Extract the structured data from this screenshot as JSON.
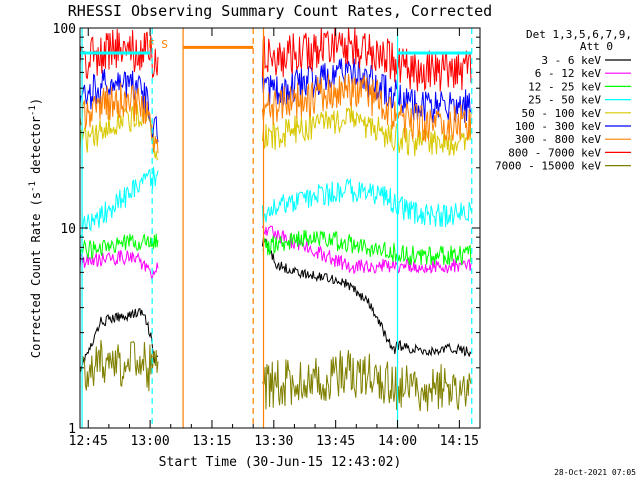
{
  "chart_data": {
    "type": "line",
    "title": "RHESSI Observing Summary Count Rates, Corrected",
    "xlabel": "Start Time (30-Jun-15 12:43:02)",
    "ylabel_main": "Corrected Count Rate (s",
    "ylabel_sup1": "-1",
    "ylabel_mid": " detector",
    "ylabel_sup2": "-1",
    "ylabel_end": ")",
    "x_unit": "minutes since 12:43:02",
    "xlim": [
      0,
      97
    ],
    "ylim": [
      1,
      100
    ],
    "yscale": "log",
    "x_ticks": [
      {
        "label": "12:45",
        "value": 2
      },
      {
        "label": "13:00",
        "value": 17
      },
      {
        "label": "13:15",
        "value": 32
      },
      {
        "label": "13:30",
        "value": 47
      },
      {
        "label": "13:45",
        "value": 62
      },
      {
        "label": "14:00",
        "value": 77
      },
      {
        "label": "14:15",
        "value": 92
      }
    ],
    "y_ticks": [
      {
        "label": "1",
        "value": 1
      },
      {
        "label": "10",
        "value": 10
      },
      {
        "label": "100",
        "value": 100
      }
    ],
    "legend_header1": "Det 1,3,5,6,7,9,",
    "legend_header2": "Att 0",
    "legend_placement": "right",
    "series": [
      {
        "name": "3 - 6 keV",
        "color": "#000000",
        "x": [
          0,
          3,
          5,
          10,
          15,
          17,
          18,
          45,
          46,
          48,
          50,
          55,
          60,
          65,
          70,
          72,
          76,
          77,
          80,
          85,
          90,
          95
        ],
        "y": [
          2.0,
          2.6,
          3.4,
          3.6,
          3.8,
          3.0,
          2.1,
          8.5,
          7.5,
          6.5,
          6.3,
          5.8,
          5.7,
          5.2,
          4.2,
          3.5,
          2.4,
          2.6,
          2.5,
          2.4,
          2.5,
          2.4
        ]
      },
      {
        "name": "6 - 12 keV",
        "color": "#ff00ff",
        "x": [
          0,
          5,
          10,
          14,
          17,
          45,
          50,
          55,
          60,
          65,
          70,
          75,
          77,
          80,
          85,
          90,
          95
        ],
        "y": [
          6.8,
          6.9,
          7.2,
          7.0,
          6.0,
          9.8,
          8.8,
          8.0,
          7.2,
          6.5,
          6.4,
          6.5,
          6.4,
          6.5,
          6.4,
          6.5,
          6.4
        ]
      },
      {
        "name": "12 - 25 keV",
        "color": "#00ff00",
        "x": [
          0,
          5,
          10,
          15,
          18,
          45,
          50,
          55,
          60,
          65,
          70,
          75,
          77,
          80,
          85,
          90,
          95
        ],
        "y": [
          7.6,
          8.0,
          8.3,
          8.6,
          8.4,
          8.0,
          8.6,
          8.8,
          8.7,
          8.4,
          8.0,
          7.7,
          7.4,
          7.3,
          7.3,
          7.3,
          7.3
        ]
      },
      {
        "name": "25 - 50 keV",
        "color": "#00ffff",
        "x": [
          0,
          3,
          6,
          9,
          12,
          15,
          17,
          18,
          45,
          50,
          55,
          60,
          65,
          70,
          75,
          77,
          80,
          85,
          90,
          95
        ],
        "y": [
          9.8,
          10.8,
          12.0,
          13.5,
          14.8,
          16.5,
          17.5,
          17.8,
          11.5,
          13.0,
          14.0,
          14.8,
          15.3,
          15.0,
          14.0,
          12.8,
          12.0,
          11.5,
          11.6,
          12.0
        ]
      },
      {
        "name": "50 - 100 keV",
        "color": "#d8c800",
        "x": [
          0,
          3,
          6,
          9,
          12,
          15,
          17,
          18,
          45,
          50,
          55,
          60,
          64,
          68,
          72,
          77,
          80,
          85,
          90,
          95
        ],
        "y": [
          27,
          29,
          31,
          33,
          35,
          37,
          34,
          26,
          28,
          30,
          32,
          34,
          36,
          34,
          31,
          28,
          27,
          27,
          27,
          27
        ]
      },
      {
        "name": "100 - 300 keV",
        "color": "#0000ff",
        "x": [
          0,
          3,
          6,
          9,
          12,
          15,
          17,
          18,
          45,
          50,
          55,
          60,
          64,
          68,
          72,
          77,
          80,
          85,
          90,
          95
        ],
        "y": [
          45,
          48,
          52,
          55,
          53,
          48,
          40,
          30,
          48,
          50,
          53,
          56,
          60,
          57,
          52,
          45,
          41,
          40,
          40,
          41
        ]
      },
      {
        "name": "300 - 800 keV",
        "color": "#ff8000",
        "x": [
          0,
          3,
          6,
          9,
          12,
          15,
          17,
          18,
          45,
          50,
          55,
          60,
          64,
          68,
          72,
          77,
          80,
          85,
          90,
          95
        ],
        "y": [
          38,
          40,
          42,
          44,
          43,
          40,
          33,
          25,
          40,
          42,
          44,
          47,
          50,
          48,
          44,
          37,
          34,
          33,
          33,
          34
        ]
      },
      {
        "name": "800 - 7000 keV",
        "color": "#ff0000",
        "x": [
          0,
          3,
          6,
          9,
          12,
          15,
          17,
          18,
          45,
          50,
          55,
          60,
          64,
          68,
          72,
          77,
          80,
          85,
          90,
          95
        ],
        "y": [
          68,
          72,
          76,
          79,
          78,
          76,
          74,
          72,
          72,
          73,
          76,
          80,
          84,
          80,
          74,
          66,
          62,
          61,
          62,
          63
        ]
      },
      {
        "name": "7000 - 15000 keV",
        "color": "#808000",
        "x": [
          0,
          5,
          10,
          15,
          17,
          45,
          50,
          55,
          60,
          65,
          70,
          75,
          77,
          80,
          85,
          90,
          95
        ],
        "y": [
          2.0,
          2.1,
          2.0,
          2.1,
          2.0,
          1.6,
          1.7,
          1.8,
          1.8,
          1.9,
          1.8,
          1.7,
          1.6,
          1.6,
          1.6,
          1.6,
          1.6
        ]
      }
    ],
    "attenuator_line": {
      "color": "#00ffff",
      "y": 75,
      "segments": [
        [
          0,
          17
        ],
        [
          77,
          95
        ]
      ]
    },
    "night_line": {
      "color": "#ff8000",
      "y": 80,
      "segments": [
        [
          25,
          42
        ]
      ]
    },
    "flag_text": "F S",
    "vlines": [
      {
        "x": 0.5,
        "color": "#00ffff",
        "style": "solid"
      },
      {
        "x": 17.5,
        "color": "#00ffff",
        "style": "dashed"
      },
      {
        "x": 25,
        "color": "#ff8000",
        "style": "solid"
      },
      {
        "x": 42,
        "color": "#ff8000",
        "style": "dashed"
      },
      {
        "x": 44.5,
        "color": "#ff8000",
        "style": "solid"
      },
      {
        "x": 77,
        "color": "#00ffff",
        "style": "solid"
      },
      {
        "x": 95,
        "color": "#00ffff",
        "style": "dashed"
      }
    ],
    "data_gaps": [
      [
        19,
        44
      ]
    ]
  },
  "timestamp": "28-Oct-2021 07:05"
}
